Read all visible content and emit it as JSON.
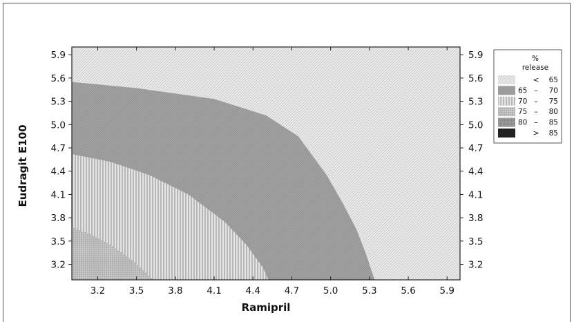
{
  "chart_data": {
    "type": "contour",
    "xlabel": "Ramipril",
    "ylabel": "Eudragit E100",
    "xlim": [
      3.0,
      6.0
    ],
    "ylim": [
      3.0,
      6.0
    ],
    "x_ticks": [
      "3.2",
      "3.5",
      "3.8",
      "4.1",
      "4.4",
      "4.7",
      "5.0",
      "5.3",
      "5.6",
      "5.9"
    ],
    "y_ticks": [
      "3.2",
      "3.5",
      "3.8",
      "4.1",
      "4.4",
      "4.7",
      "5.0",
      "5.3",
      "5.6",
      "5.9"
    ],
    "legend": {
      "title_line1": "%",
      "title_line2": "release",
      "placement": "right",
      "entries": [
        {
          "op": "<",
          "dash": "",
          "hi": "65",
          "lo": "",
          "pattern": "lt65"
        },
        {
          "op": "",
          "dash": "–",
          "hi": "70",
          "lo": "65",
          "pattern": "r6570"
        },
        {
          "op": "",
          "dash": "–",
          "hi": "75",
          "lo": "70",
          "pattern": "r7075"
        },
        {
          "op": "",
          "dash": "–",
          "hi": "80",
          "lo": "75",
          "pattern": "r7580"
        },
        {
          "op": "",
          "dash": "–",
          "hi": "85",
          "lo": "80",
          "pattern": "r8085"
        },
        {
          "op": ">",
          "dash": "",
          "hi": "85",
          "lo": "",
          "pattern": "gt85"
        }
      ]
    },
    "regions": [
      {
        "level": "65 – 70",
        "pattern": "r6570",
        "boundary": [
          [
            3.0,
            5.55
          ],
          [
            3.5,
            5.47
          ],
          [
            4.1,
            5.33
          ],
          [
            4.5,
            5.12
          ],
          [
            4.75,
            4.85
          ],
          [
            4.97,
            4.35
          ],
          [
            5.09,
            4.0
          ],
          [
            5.2,
            3.65
          ],
          [
            5.27,
            3.35
          ],
          [
            5.34,
            3.0
          ]
        ]
      },
      {
        "level": "70 – 75",
        "pattern": "r7075",
        "boundary": [
          [
            3.0,
            4.62
          ],
          [
            3.3,
            4.52
          ],
          [
            3.6,
            4.35
          ],
          [
            3.9,
            4.1
          ],
          [
            4.18,
            3.75
          ],
          [
            4.35,
            3.45
          ],
          [
            4.48,
            3.15
          ],
          [
            4.52,
            3.0
          ]
        ]
      },
      {
        "level": "75 – 80",
        "pattern": "r7580",
        "boundary": [
          [
            3.0,
            3.68
          ],
          [
            3.15,
            3.58
          ],
          [
            3.3,
            3.45
          ],
          [
            3.47,
            3.25
          ],
          [
            3.63,
            3.0
          ]
        ]
      }
    ]
  }
}
